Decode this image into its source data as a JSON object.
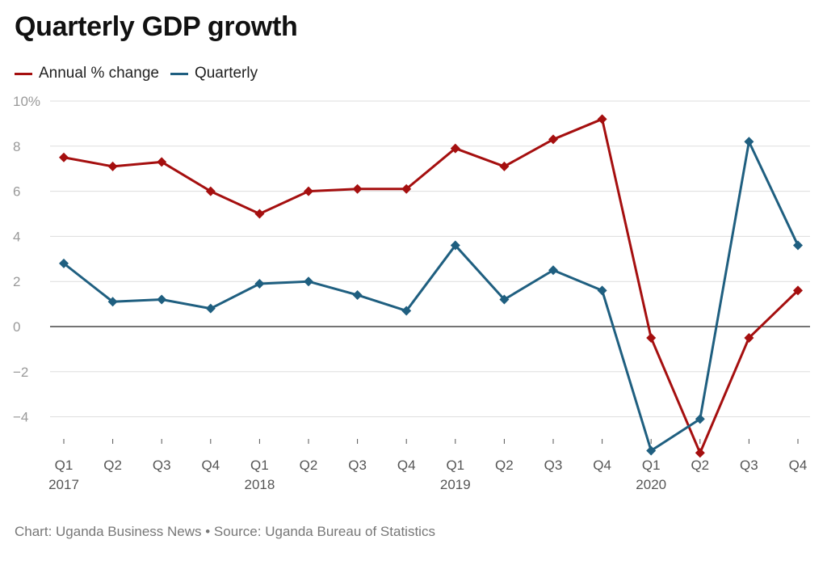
{
  "title": "Quarterly GDP growth",
  "footer": "Chart: Uganda Business News • Source: Uganda Bureau of Statistics",
  "colors": {
    "annual": "#a50f0f",
    "quarterly": "#1f5f80",
    "grid": "#dddddd",
    "zero": "#222222",
    "axis_text": "#999999",
    "xaxis_text": "#555555"
  },
  "chart_data": {
    "type": "line",
    "title": "Quarterly GDP growth",
    "xlabel": "",
    "ylabel": "",
    "ylim": [
      -5.5,
      10
    ],
    "yticks": [
      10,
      8,
      6,
      4,
      2,
      0,
      -2,
      -4
    ],
    "ytick_labels": [
      "10%",
      "8",
      "6",
      "4",
      "2",
      "0",
      "−2",
      "−4"
    ],
    "grid": true,
    "legend_position": "top-left",
    "categories": [
      "Q1",
      "Q2",
      "Q3",
      "Q4",
      "Q1",
      "Q2",
      "Q3",
      "Q4",
      "Q1",
      "Q2",
      "Q3",
      "Q4",
      "Q1",
      "Q2",
      "Q3",
      "Q4"
    ],
    "year_labels": [
      "2017",
      "",
      "",
      "",
      "2018",
      "",
      "",
      "",
      "2019",
      "",
      "",
      "",
      "2020",
      "",
      "",
      ""
    ],
    "series": [
      {
        "name": "Annual % change",
        "color_key": "annual",
        "values": [
          7.5,
          7.1,
          7.3,
          6.0,
          5.0,
          6.0,
          6.1,
          6.1,
          7.9,
          7.1,
          8.3,
          9.2,
          -0.5,
          -5.6,
          -0.5,
          1.6
        ]
      },
      {
        "name": "Quarterly",
        "color_key": "quarterly",
        "values": [
          2.8,
          1.1,
          1.2,
          0.8,
          1.9,
          2.0,
          1.4,
          0.7,
          3.6,
          1.2,
          2.5,
          1.6,
          -5.5,
          -4.1,
          8.2,
          3.6
        ]
      }
    ]
  }
}
